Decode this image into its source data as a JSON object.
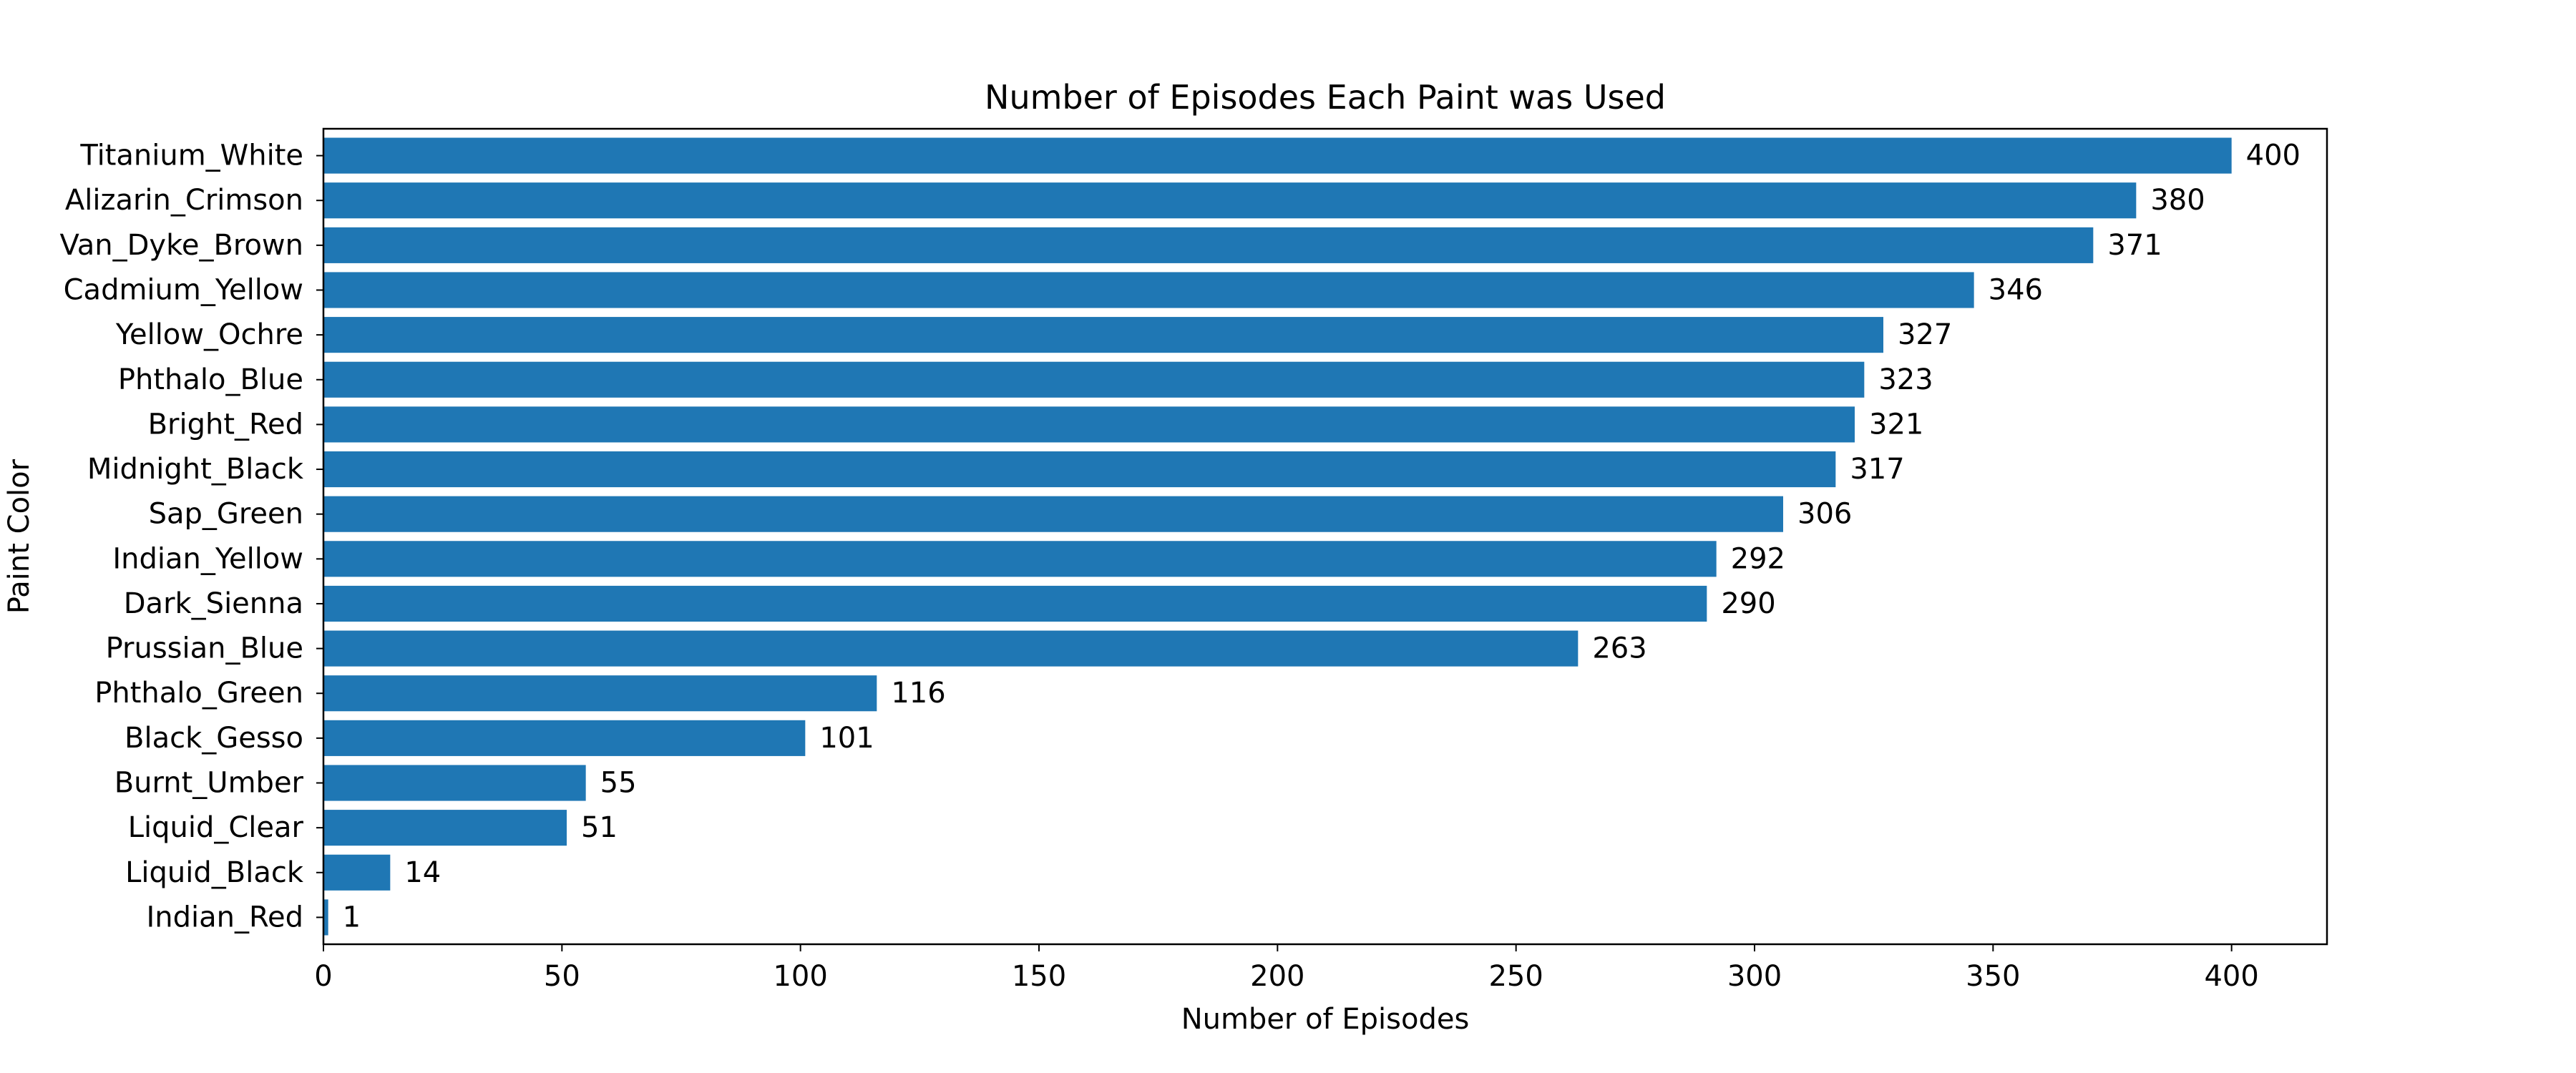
{
  "chart_data": {
    "type": "bar",
    "orientation": "horizontal",
    "title": "Number of Episodes Each Paint was Used",
    "xlabel": "Number of Episodes",
    "ylabel": "Paint Color",
    "xlim": [
      0,
      420
    ],
    "x_ticks": [
      0,
      50,
      100,
      150,
      200,
      250,
      300,
      350,
      400
    ],
    "grid": false,
    "legend": false,
    "bar_color": "#1f77b4",
    "categories": [
      "Titanium_White",
      "Alizarin_Crimson",
      "Van_Dyke_Brown",
      "Cadmium_Yellow",
      "Yellow_Ochre",
      "Phthalo_Blue",
      "Bright_Red",
      "Midnight_Black",
      "Sap_Green",
      "Indian_Yellow",
      "Dark_Sienna",
      "Prussian_Blue",
      "Phthalo_Green",
      "Black_Gesso",
      "Burnt_Umber",
      "Liquid_Clear",
      "Liquid_Black",
      "Indian_Red"
    ],
    "values": [
      400,
      380,
      371,
      346,
      327,
      323,
      321,
      317,
      306,
      292,
      290,
      263,
      116,
      101,
      55,
      51,
      14,
      1
    ]
  }
}
